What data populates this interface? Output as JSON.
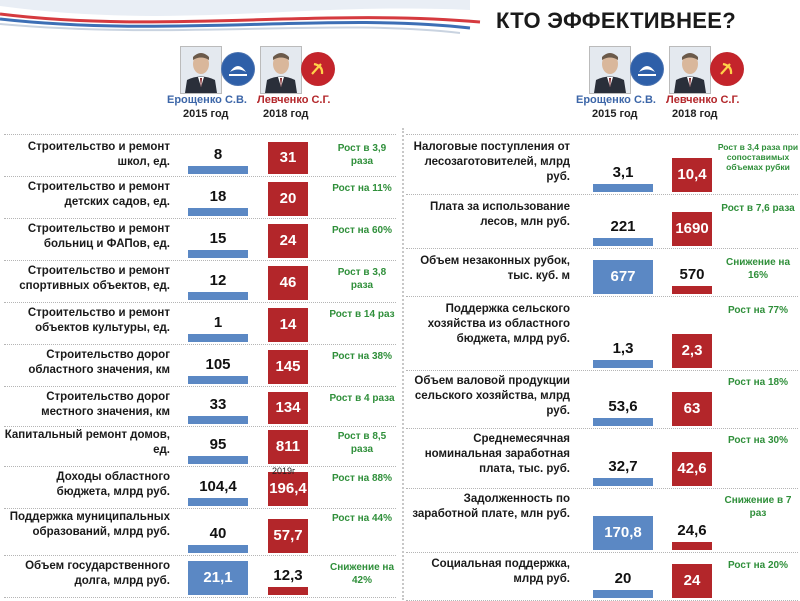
{
  "title": "КТО ЭФФЕКТИВНЕЕ?",
  "candidates": [
    {
      "name": "Ерощенко С.В.",
      "year": "2015 год",
      "color": "#4a72b0",
      "logo": "party-logo-blue"
    },
    {
      "name": "Левченко С.Г.",
      "year": "2018 год",
      "color": "#c0272d",
      "logo": "party-logo-red"
    }
  ],
  "colors": {
    "blue": "#5b88c4",
    "red": "#b3262a",
    "growth": "#2f8f3a"
  },
  "note_2019": "2019г",
  "chart_data": {
    "type": "bar",
    "series": [
      {
        "name": "Ерощенко С.В. 2015 год"
      },
      {
        "name": "Левченко С.Г. 2018 год"
      }
    ],
    "rows": [
      {
        "label": "Строительство и ремонт школ, ед.",
        "v1": "8",
        "v2": "31",
        "n1": 8,
        "n2": 31,
        "growth": "Рост в 3,9 раза"
      },
      {
        "label": "Строительство и ремонт детских садов, ед.",
        "v1": "18",
        "v2": "20",
        "n1": 18,
        "n2": 20,
        "growth": "Рост на 11%"
      },
      {
        "label": "Строительство и ремонт больниц и ФАПов, ед.",
        "v1": "15",
        "v2": "24",
        "n1": 15,
        "n2": 24,
        "growth": "Рост на 60%"
      },
      {
        "label": "Строительство и ремонт спортивных объектов, ед.",
        "v1": "12",
        "v2": "46",
        "n1": 12,
        "n2": 46,
        "growth": "Рост в 3,8 раза"
      },
      {
        "label": "Строительство и ремонт объектов культуры, ед.",
        "v1": "1",
        "v2": "14",
        "n1": 1,
        "n2": 14,
        "growth": "Рост в 14 раз"
      },
      {
        "label": "Строительство дорог областного значения, км",
        "v1": "105",
        "v2": "145",
        "n1": 105,
        "n2": 145,
        "growth": "Рост на 38%"
      },
      {
        "label": "Строительство дорог местного значения, км",
        "v1": "33",
        "v2": "134",
        "n1": 33,
        "n2": 134,
        "growth": "Рост в 4 раза"
      },
      {
        "label": "Капитальный ремонт домов, ед.",
        "v1": "95",
        "v2": "811",
        "n1": 95,
        "n2": 811,
        "growth": "Рост в 8,5 раза"
      },
      {
        "label": "Доходы областного бюджета, млрд руб.",
        "v1": "104,4",
        "v2": "196,4",
        "n1": 104.4,
        "n2": 196.4,
        "growth": "Рост на 88%"
      },
      {
        "label": "Поддержка муниципальных образований, млрд руб.",
        "v1": "40",
        "v2": "57,7",
        "n1": 40,
        "n2": 57.7,
        "growth": "Рост на 44%"
      },
      {
        "label": "Объем государственного долга, млрд руб.",
        "v1": "21,1",
        "v2": "12,3",
        "n1": 21.1,
        "n2": 12.3,
        "growth": "Снижение на 42%"
      },
      {
        "label": "Налоговые поступления от лесозаготовителей, млрд руб.",
        "v1": "3,1",
        "v2": "10,4",
        "n1": 3.1,
        "n2": 10.4,
        "growth": "Рост в 3,4 раза при сопоставимых объемах рубки"
      },
      {
        "label": "Плата за использование лесов, млн руб.",
        "v1": "221",
        "v2": "1690",
        "n1": 221,
        "n2": 1690,
        "growth": "Рост в 7,6 раза"
      },
      {
        "label": "Объем незаконных рубок, тыс. куб. м",
        "v1": "677",
        "v2": "570",
        "n1": 677,
        "n2": 570,
        "growth": "Снижение на 16%"
      },
      {
        "label": "Поддержка сельского хозяйства из областного бюджета, млрд руб.",
        "v1": "1,3",
        "v2": "2,3",
        "n1": 1.3,
        "n2": 2.3,
        "growth": "Рост на 77%"
      },
      {
        "label": "Объем валовой продукции сельского хозяйства, млрд руб.",
        "v1": "53,6",
        "v2": "63",
        "n1": 53.6,
        "n2": 63,
        "growth": "Рост на 18%"
      },
      {
        "label": "Среднемесячная номинальная заработная плата, тыс. руб.",
        "v1": "32,7",
        "v2": "42,6",
        "n1": 32.7,
        "n2": 42.6,
        "growth": "Рост на 30%"
      },
      {
        "label": "Задолженность по заработной плате, млн руб.",
        "v1": "170,8",
        "v2": "24,6",
        "n1": 170.8,
        "n2": 24.6,
        "growth": "Снижение в 7 раз"
      },
      {
        "label": "Социальная поддержка, млрд руб.",
        "v1": "20",
        "v2": "24",
        "n1": 20,
        "n2": 24,
        "growth": "Рост на 20%"
      }
    ]
  }
}
